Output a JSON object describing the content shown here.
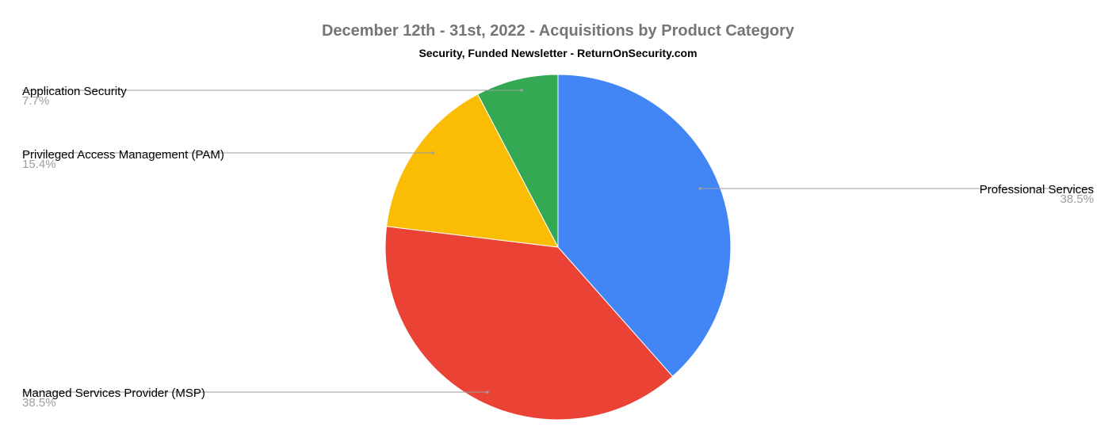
{
  "chart_data": {
    "type": "pie",
    "title": "December 12th - 31st, 2022 - Acquisitions by Product Category",
    "subtitle": "Security, Funded Newsletter - ReturnOnSecurity.com",
    "slices": [
      {
        "label": "Professional Services",
        "value": 38.5,
        "percent_label": "38.5%",
        "color": "#4285F4"
      },
      {
        "label": "Managed Services Provider (MSP)",
        "value": 38.5,
        "percent_label": "38.5%",
        "color": "#EA4335"
      },
      {
        "label": "Privileged Access Management (PAM)",
        "value": 15.4,
        "percent_label": "15.4%",
        "color": "#FBBC04"
      },
      {
        "label": "Application Security",
        "value": 7.7,
        "percent_label": "7.7%",
        "color": "#34A853"
      }
    ],
    "legend": "none"
  }
}
